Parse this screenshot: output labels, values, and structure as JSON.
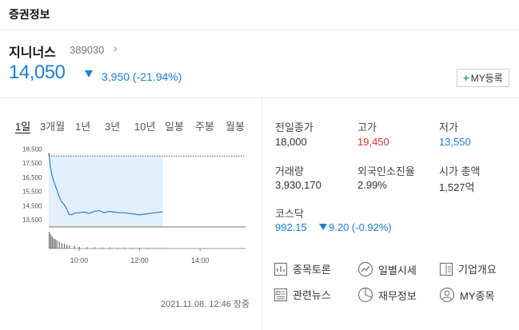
{
  "header": {
    "title": "증권정보"
  },
  "stock": {
    "name": "지니너스",
    "code": "389030",
    "code_arrow": "›",
    "price": "14,050",
    "change": "3,950 (-21.94%)",
    "direction": "down"
  },
  "my_button": {
    "plus": "+",
    "label": "MY등록"
  },
  "tabs": [
    "1일",
    "3개월",
    "1년",
    "3년",
    "10년",
    "일봉",
    "주봉",
    "월봉"
  ],
  "active_tab": "1일",
  "chart_data": {
    "type": "area",
    "x_ticks": [
      "10:00",
      "12:00",
      "14:00"
    ],
    "y_ticks": [
      "18,500",
      "17,500",
      "16,500",
      "15,500",
      "14,500",
      "13,500"
    ],
    "ylim": [
      13000,
      18750
    ],
    "time_range": [
      "09:00",
      "15:30"
    ],
    "previous_close": 18000,
    "price_series": {
      "time": [
        "09:00",
        "09:01",
        "09:03",
        "09:06",
        "09:09",
        "09:12",
        "09:15",
        "09:20",
        "09:25",
        "09:30",
        "09:35",
        "09:40",
        "09:45",
        "09:50",
        "09:55",
        "10:00",
        "10:10",
        "10:20",
        "10:30",
        "10:40",
        "10:50",
        "11:00",
        "11:10",
        "11:20",
        "11:30",
        "11:40",
        "11:50",
        "12:00",
        "12:10",
        "12:20",
        "12:30",
        "12:40",
        "12:46"
      ],
      "values": [
        18200,
        18000,
        17300,
        16700,
        16300,
        16000,
        15700,
        15200,
        14800,
        14600,
        14300,
        13900,
        13850,
        13950,
        14000,
        14000,
        14050,
        13950,
        14100,
        14150,
        14000,
        14100,
        14050,
        14000,
        14000,
        13950,
        13900,
        13850,
        13900,
        13950,
        14000,
        14050,
        14050
      ]
    },
    "volume_series": {
      "time": [
        "09:00",
        "09:03",
        "09:06",
        "09:09",
        "09:12",
        "09:15",
        "09:20",
        "09:25",
        "09:30",
        "09:35",
        "09:40",
        "09:50",
        "10:00",
        "10:15",
        "10:30",
        "10:45",
        "11:00",
        "11:15",
        "11:30",
        "11:45",
        "12:00",
        "12:15",
        "12:30",
        "12:45"
      ],
      "values": [
        100,
        85,
        70,
        60,
        55,
        48,
        40,
        32,
        28,
        22,
        18,
        14,
        10,
        8,
        7,
        6,
        6,
        5,
        5,
        4,
        4,
        4,
        3,
        3
      ]
    }
  },
  "timestamp": "2021.11.08. 12:46 장중",
  "stats": {
    "prev_close": {
      "label": "전일종가",
      "value": "18,000"
    },
    "high": {
      "label": "고가",
      "value": "19,450"
    },
    "low": {
      "label": "저가",
      "value": "13,550"
    },
    "volume": {
      "label": "거래량",
      "value": "3,930,170"
    },
    "foreign": {
      "label": "외국인소진율",
      "value": "2.99%"
    },
    "market_cap": {
      "label": "시가 총액",
      "value": "1,527억"
    },
    "kosdaq": {
      "label": "코스닥",
      "value": "992.15",
      "change": "9.20 (-0.92%)"
    }
  },
  "links": {
    "discussion": "종목토론",
    "daily_price": "일별시세",
    "company": "기업개요",
    "news": "관련뉴스",
    "financials": "재무정보",
    "my_stocks": "MY종목"
  },
  "colors": {
    "up": "#e03131",
    "down": "#1c7ed6",
    "area_fill": "#e3f0fb",
    "area_line": "#2f7fd8"
  }
}
